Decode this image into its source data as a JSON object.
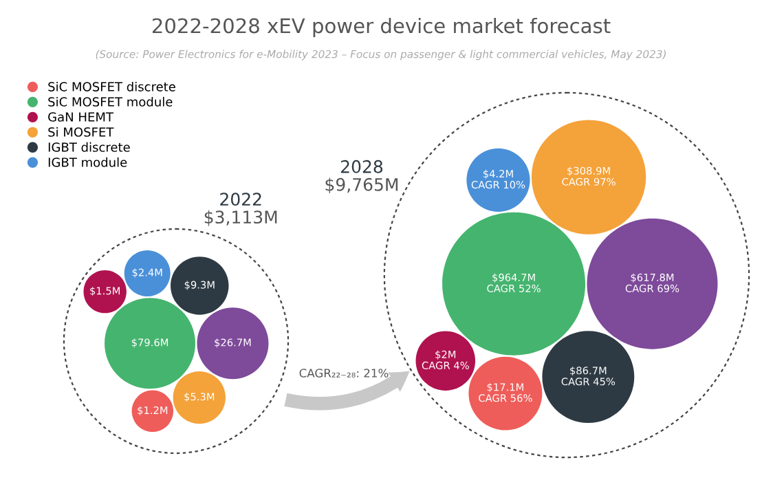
{
  "chart_data": {
    "type": "other",
    "title": "2022-2028 xEV power device market forecast",
    "subtitle": "(Source: Power Electronics for e-Mobility 2023 – Focus on passenger & light commercial vehicles, May 2023)",
    "categories": [
      "2022",
      "2028"
    ],
    "legend": "top left",
    "series": [
      {
        "name": "SiC MOSFET discrete",
        "color": "#ee5d5a",
        "values": [
          1.2,
          17.1
        ],
        "value_labels": [
          "$1.2M",
          "$17.1M"
        ]
      },
      {
        "name": "SiC MOSFET module",
        "color": "#45b46f",
        "values": [
          79.6,
          964.7
        ],
        "value_labels": [
          "$79.6M",
          "$964.7M"
        ]
      },
      {
        "name": "GaN HEMT",
        "color": "#b0124f",
        "values": [
          1.5,
          2
        ],
        "value_labels": [
          "$1.5M",
          "$2M"
        ]
      },
      {
        "name": "Si MOSFET",
        "color": "#f4a23a",
        "values": [
          5.3,
          308.9
        ],
        "value_labels": [
          "$5.3M",
          "$308.9M"
        ]
      },
      {
        "name": "IGBT discrete",
        "color": "#2e3a43",
        "values": [
          9.3,
          86.7
        ],
        "value_labels": [
          "$9.3M",
          "$86.7M"
        ]
      },
      {
        "name": "IGBT module",
        "color": "#4a90d9",
        "values": [
          2.4,
          4.2
        ],
        "value_labels": [
          "$2.4M",
          "$4.2M"
        ]
      },
      {
        "color": "#7e4a9a",
        "values": [
          26.7,
          617.8
        ],
        "value_labels": [
          "$26.7M",
          "$617.8M"
        ]
      }
    ],
    "totals": [
      "$3,113M",
      "$9,765M"
    ],
    "annotations": [
      "CAGR₂₂₋₂₈: 21%",
      "CAGR 56%",
      "CAGR 52%",
      "CAGR 4%",
      "CAGR 97%",
      "CAGR 45%",
      "CAGR 10%",
      "CAGR 69%"
    ]
  }
}
